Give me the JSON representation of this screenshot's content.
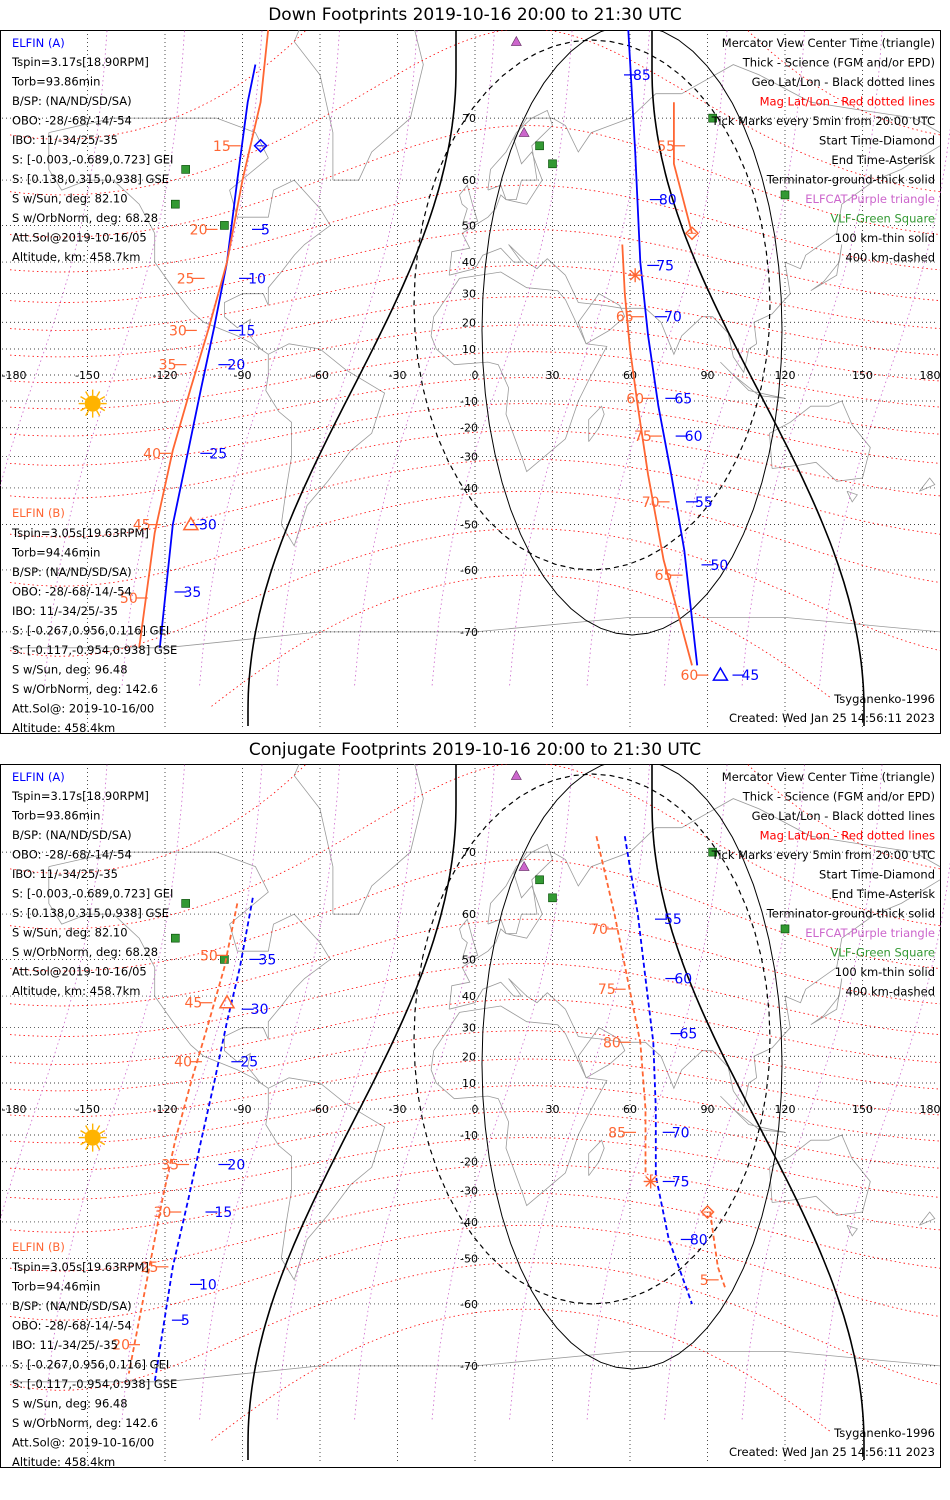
{
  "colors": {
    "elfin_a": "#0000ff",
    "elfin_b": "#ff6633",
    "mag_grid": "#ff0000",
    "geo_grid": "#000000",
    "elfcat": "#cc66cc",
    "vlf": "#339933",
    "sun": "#ffb300",
    "coast": "#9a9a9a"
  },
  "icons": [
    "sun-icon",
    "elfcat-triangle-icon",
    "vlf-square-icon",
    "start-diamond-icon",
    "end-asterisk-icon",
    "center-triangle-icon"
  ],
  "axes": {
    "lon_ticks": [
      "-180",
      "-150",
      "-120",
      "-90",
      "-60",
      "-30",
      "0",
      "30",
      "60",
      "90",
      "120",
      "150",
      "180"
    ],
    "lat_ticks": [
      "70",
      "60",
      "50",
      "40",
      "30",
      "20",
      "10",
      "-10",
      "-20",
      "-30",
      "-40",
      "-50",
      "-60",
      "-70"
    ]
  },
  "legend": [
    "Mercator View Center Time (triangle)",
    "Thick - Science (FGM and/or EPD)",
    "Geo Lat/Lon - Black dotted lines",
    "Mag Lat/Lon - Red dotted lines",
    "Tick Marks every 5min from 20:00 UTC",
    "Start Time-Diamond",
    "End Time-Asterisk",
    "Terminator-ground-thick solid",
    "ELFCAT-Purple triangle",
    "VLF-Green Square",
    "100 km-thin solid",
    "400 km-dashed"
  ],
  "elfin_a": {
    "name": "ELFIN (A)",
    "lines": [
      "Tspin=3.17s[18.90RPM]",
      "Torb=93.86min",
      "B/SP: (NA/ND/SD/SA)",
      "OBO: -28/-68/-14/-54",
      "IBO: 11/-34/25/-35",
      "S: [-0.003,-0.689,0.723] GEI",
      "S: [0.138,0.315,0.938] GSE",
      "S w/Sun, deg: 82.10",
      "S w/OrbNorm, deg: 68.28",
      "Att.Sol@2019-10-16/05",
      "Altitude, km: 458.7km"
    ]
  },
  "elfin_b": {
    "name": "ELFIN (B)",
    "lines": [
      "Tspin=3.05s[19.63RPM]",
      "Torb=94.46min",
      "B/SP: (NA/ND/SD/SA)",
      "OBO: -28/-68/-14/-54",
      "IBO: 11/-34/25/-35",
      "S: [-0.267,0.956,0.116] GEI",
      "S: [-0.117,-0.954,0.938] GSE",
      "S w/Sun, deg: 96.48",
      "S w/OrbNorm, deg: 142.6",
      "Att.Sol@: 2019-10-16/00",
      "Altitude: 458.4km"
    ]
  },
  "model": "Tsyganenko-1996",
  "created": "Created: Wed Jan 25 14:56:11 2023",
  "panels": [
    {
      "title": "Down Footprints 2019-10-16 20:00 to 21:30 UTC",
      "dashed_tracks": false,
      "a_tracks": [
        [
          [
            -85,
            76
          ],
          [
            -88,
            72
          ],
          [
            -92,
            60
          ],
          [
            -96,
            40
          ],
          [
            -101,
            18
          ],
          [
            -106,
            -5
          ],
          [
            -111,
            -28
          ],
          [
            -117,
            -50
          ],
          [
            -122,
            -72
          ]
        ],
        [
          [
            59,
            80
          ],
          [
            62,
            65
          ],
          [
            64,
            40
          ],
          [
            67,
            15
          ],
          [
            71,
            -12
          ],
          [
            76,
            -36
          ],
          [
            81,
            -56
          ],
          [
            86,
            -74
          ]
        ]
      ],
      "b_tracks": [
        [
          [
            -80,
            79
          ],
          [
            -83,
            72
          ],
          [
            -90,
            60
          ],
          [
            -96,
            40
          ],
          [
            -103,
            18
          ],
          [
            -110,
            -5
          ],
          [
            -117,
            -28
          ],
          [
            -124,
            -52
          ],
          [
            -130,
            -72
          ]
        ],
        [
          [
            77,
            72
          ],
          [
            77,
            63
          ],
          [
            84,
            48
          ]
        ],
        [
          [
            57,
            45
          ],
          [
            58,
            30
          ],
          [
            60,
            10
          ],
          [
            63,
            -12
          ],
          [
            67,
            -36
          ],
          [
            73,
            -58
          ],
          [
            84,
            -74
          ]
        ]
      ],
      "a_labels": [
        {
          "t": "85",
          "lon": 60,
          "lat": 75
        },
        {
          "t": "80",
          "lon": 70,
          "lat": 56
        },
        {
          "t": "75",
          "lon": 69,
          "lat": 39
        },
        {
          "t": "70",
          "lon": 72,
          "lat": 22
        },
        {
          "t": "65",
          "lon": 76,
          "lat": -9
        },
        {
          "t": "60",
          "lon": 80,
          "lat": -23
        },
        {
          "t": "55",
          "lon": 84,
          "lat": -44
        },
        {
          "t": "50",
          "lon": 90,
          "lat": -59
        },
        {
          "t": "45",
          "lon": 102,
          "lat": -75
        },
        {
          "t": "5",
          "lon": -84,
          "lat": 49
        },
        {
          "t": "10",
          "lon": -89,
          "lat": 35
        },
        {
          "t": "15",
          "lon": -93,
          "lat": 17
        },
        {
          "t": "20",
          "lon": -97,
          "lat": 4
        },
        {
          "t": "25",
          "lon": -104,
          "lat": -29
        },
        {
          "t": "30",
          "lon": -108,
          "lat": -50
        },
        {
          "t": "35",
          "lon": -114,
          "lat": -64
        }
      ],
      "b_labels": [
        {
          "t": "15",
          "lon": -93,
          "lat": 66
        },
        {
          "t": "20",
          "lon": -102,
          "lat": 49
        },
        {
          "t": "25",
          "lon": -107,
          "lat": 35
        },
        {
          "t": "30",
          "lon": -110,
          "lat": 17
        },
        {
          "t": "35",
          "lon": -114,
          "lat": 4
        },
        {
          "t": "40",
          "lon": -120,
          "lat": -29
        },
        {
          "t": "45",
          "lon": -124,
          "lat": -50
        },
        {
          "t": "50",
          "lon": -129,
          "lat": -65
        },
        {
          "t": "55",
          "lon": 79,
          "lat": 66
        },
        {
          "t": "65",
          "lon": 63,
          "lat": 22
        },
        {
          "t": "60",
          "lon": 67,
          "lat": -9
        },
        {
          "t": "75",
          "lon": 70,
          "lat": -23
        },
        {
          "t": "70",
          "lon": 73,
          "lat": -44
        },
        {
          "t": "65",
          "lon": 78,
          "lat": -61
        },
        {
          "t": "60",
          "lon": 88,
          "lat": -75
        }
      ],
      "markers": [
        {
          "kind": "diamond",
          "color": "a",
          "lon": -83,
          "lat": 66
        },
        {
          "kind": "diamond",
          "color": "b",
          "lon": 84,
          "lat": 48
        },
        {
          "kind": "asterisk",
          "color": "b",
          "lon": 62,
          "lat": 36
        },
        {
          "kind": "triangle",
          "color": "b",
          "lon": -110,
          "lat": -50
        },
        {
          "kind": "triangle",
          "color": "a",
          "lon": 95,
          "lat": -75
        }
      ]
    },
    {
      "title": "Conjugate Footprints 2019-10-16 20:00 to 21:30 UTC",
      "dashed_tracks": true,
      "a_tracks": [
        [
          [
            -86,
            63
          ],
          [
            -91,
            48
          ],
          [
            -96,
            32
          ],
          [
            -101,
            10
          ],
          [
            -106,
            -12
          ],
          [
            -111,
            -33
          ],
          [
            -117,
            -52
          ],
          [
            -124,
            -72
          ]
        ],
        [
          [
            58,
            72
          ],
          [
            63,
            60
          ],
          [
            66,
            45
          ],
          [
            69,
            25
          ],
          [
            70,
            0
          ],
          [
            70,
            -25
          ],
          [
            75,
            -45
          ],
          [
            84,
            -60
          ]
        ]
      ],
      "b_tracks": [
        [
          [
            -92,
            62
          ],
          [
            -97,
            48
          ],
          [
            -103,
            32
          ],
          [
            -110,
            10
          ],
          [
            -116,
            -12
          ],
          [
            -121,
            -33
          ],
          [
            -126,
            -52
          ],
          [
            -134,
            -71
          ]
        ],
        [
          [
            47,
            72
          ],
          [
            54,
            60
          ],
          [
            59,
            45
          ],
          [
            64,
            25
          ],
          [
            66,
            0
          ],
          [
            66,
            -25
          ]
        ],
        [
          [
            91,
            -37
          ],
          [
            94,
            -52
          ],
          [
            97,
            -57
          ]
        ]
      ],
      "a_labels": [
        {
          "t": "55",
          "lon": 72,
          "lat": 59
        },
        {
          "t": "60",
          "lon": 76,
          "lat": 45
        },
        {
          "t": "65",
          "lon": 78,
          "lat": 28
        },
        {
          "t": "70",
          "lon": 75,
          "lat": -9
        },
        {
          "t": "75",
          "lon": 75,
          "lat": -27
        },
        {
          "t": "80",
          "lon": 82,
          "lat": -45
        },
        {
          "t": "35",
          "lon": -85,
          "lat": 50
        },
        {
          "t": "30",
          "lon": -88,
          "lat": 36
        },
        {
          "t": "25",
          "lon": -92,
          "lat": 18
        },
        {
          "t": "20",
          "lon": -97,
          "lat": -21
        },
        {
          "t": "15",
          "lon": -102,
          "lat": -37
        },
        {
          "t": "10",
          "lon": -108,
          "lat": -56
        },
        {
          "t": "5",
          "lon": -115,
          "lat": -63
        }
      ],
      "b_labels": [
        {
          "t": "70",
          "lon": 53,
          "lat": 57
        },
        {
          "t": "75",
          "lon": 56,
          "lat": 42
        },
        {
          "t": "80",
          "lon": 58,
          "lat": 25
        },
        {
          "t": "85",
          "lon": 60,
          "lat": -9
        },
        {
          "t": "5",
          "lon": 92,
          "lat": -55
        },
        {
          "t": "50",
          "lon": -98,
          "lat": 51
        },
        {
          "t": "45",
          "lon": -104,
          "lat": 38
        },
        {
          "t": "40",
          "lon": -108,
          "lat": 18
        },
        {
          "t": "35",
          "lon": -113,
          "lat": -21
        },
        {
          "t": "30",
          "lon": -116,
          "lat": -37
        },
        {
          "t": "25",
          "lon": -121,
          "lat": -52
        },
        {
          "t": "20",
          "lon": -132,
          "lat": -67
        }
      ],
      "markers": [
        {
          "kind": "diamond",
          "color": "b",
          "lon": 90,
          "lat": -37
        },
        {
          "kind": "asterisk",
          "color": "b",
          "lon": 68,
          "lat": -27
        },
        {
          "kind": "triangle",
          "color": "b",
          "lon": -96,
          "lat": 38
        }
      ]
    }
  ]
}
